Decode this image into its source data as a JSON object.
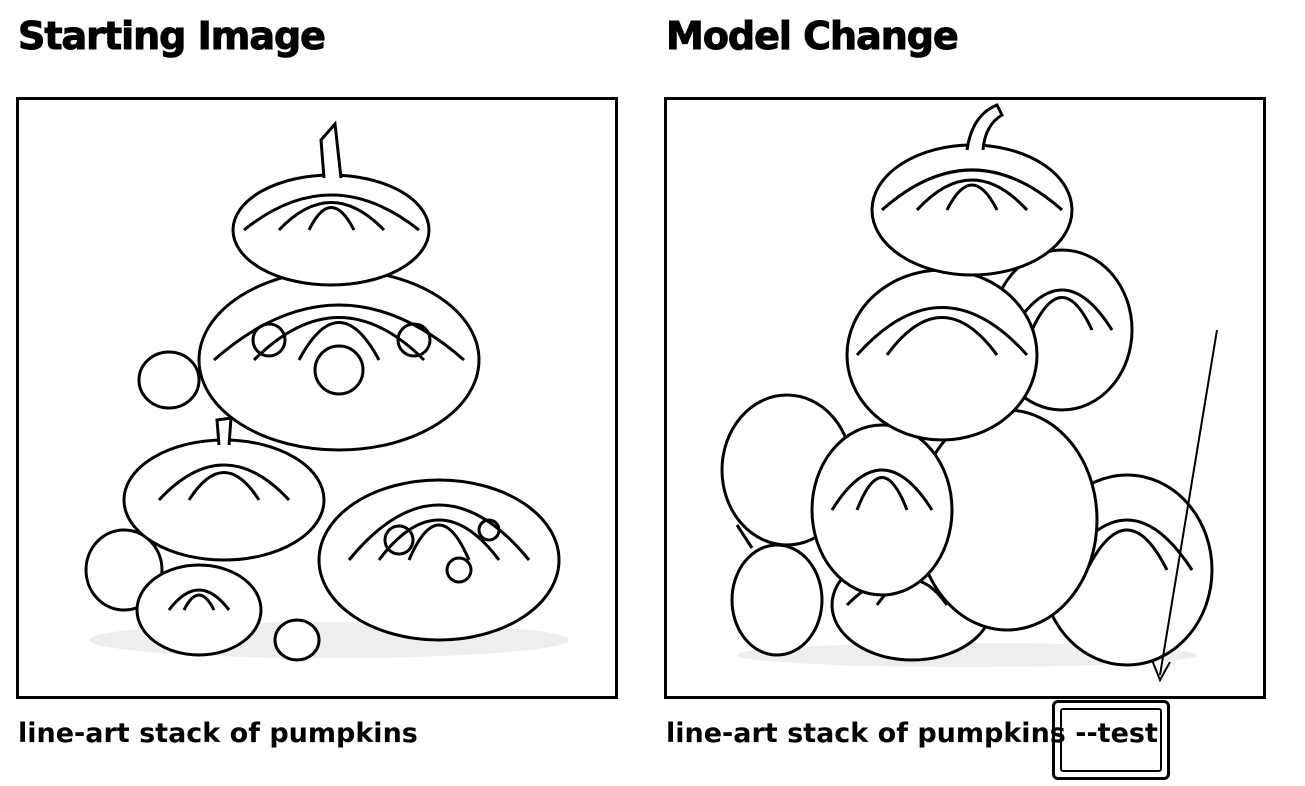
{
  "panels": [
    {
      "heading": "Starting Image",
      "caption": "line-art stack of pumpkins",
      "image_icon": "pumpkin-stack-lineart"
    },
    {
      "heading": "Model Change",
      "caption_base": "line-art stack of pumpkins",
      "caption_suffix": " --test",
      "image_icon": "pumpkin-stack-lineart-variant"
    }
  ]
}
